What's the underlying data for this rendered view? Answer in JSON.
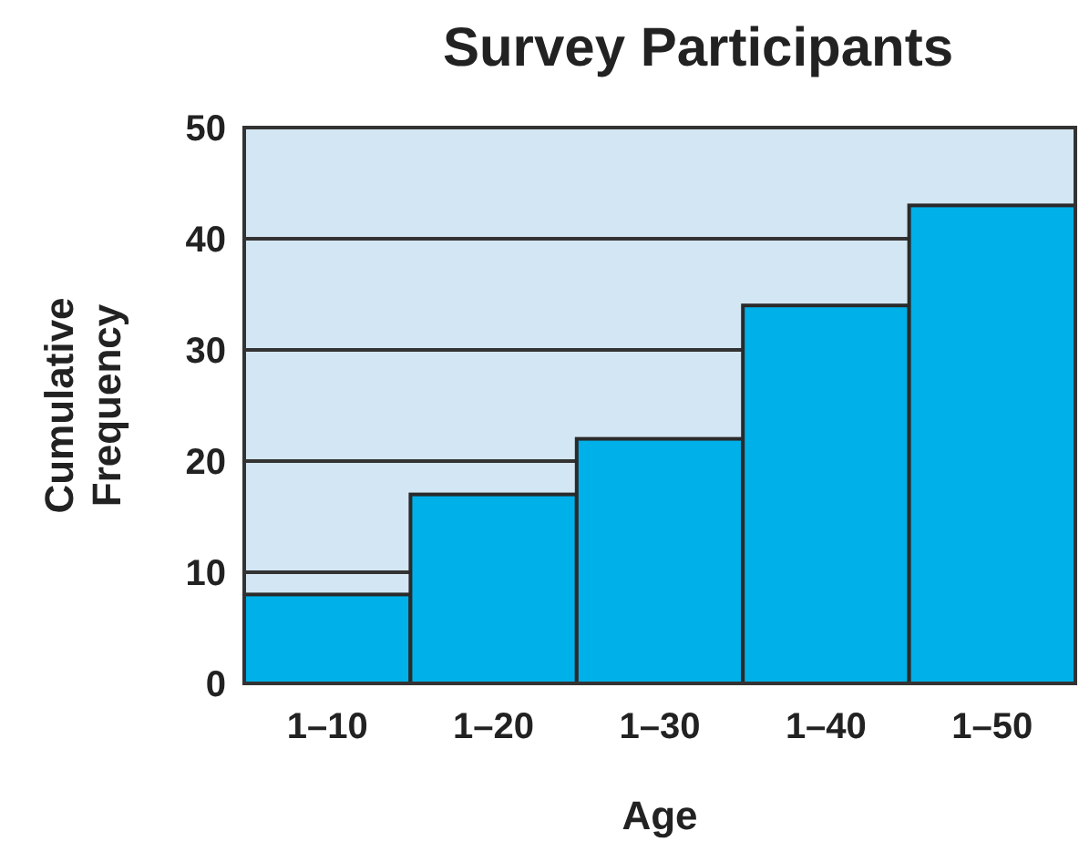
{
  "chart_data": {
    "type": "bar",
    "title": "Survey Participants",
    "xlabel": "Age",
    "ylabel": "Cumulative Frequency",
    "categories": [
      "1–10",
      "1–20",
      "1–30",
      "1–40",
      "1–50"
    ],
    "values": [
      8,
      17,
      22,
      34,
      43
    ],
    "color": "#00b0e8",
    "ylim": [
      0,
      50
    ],
    "yticks": [
      0,
      10,
      20,
      30,
      40,
      50
    ],
    "grid": "y",
    "bands": [
      {
        "axis": "y",
        "from": 0,
        "to": 50,
        "color": "#d3e6f3"
      }
    ]
  }
}
